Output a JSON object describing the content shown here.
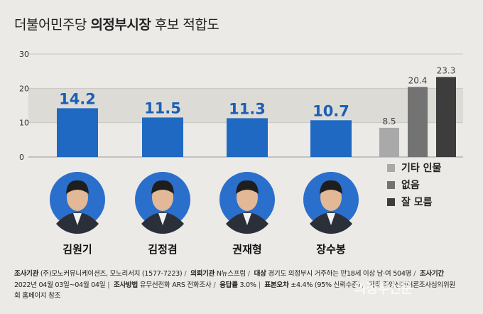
{
  "title": {
    "prefix": "더불어민주당",
    "bold": "의정부시장",
    "suffix": "후보 적합도"
  },
  "chart_data": {
    "type": "bar",
    "categories": [
      "김원기",
      "김정겸",
      "권재형",
      "장수봉",
      "기타 인물",
      "없음",
      "잘 모름"
    ],
    "values": [
      14.2,
      11.5,
      11.3,
      10.7,
      8.5,
      20.4,
      23.3
    ],
    "value_labels": [
      "14.2",
      "11.5",
      "11.3",
      "10.7",
      "8.5",
      "20.4",
      "23.3"
    ],
    "ylim": [
      0,
      30
    ],
    "yticks": [
      "0",
      "10",
      "20",
      "30"
    ],
    "legend": [
      "기타 인물",
      "없음",
      "잘 모름"
    ],
    "legend_position": "right",
    "colors": {
      "candidate": "#1f69c3",
      "other": "#a9a9a9",
      "none": "#737373",
      "dontknow": "#3d3d3d",
      "band": "#dddbd6"
    }
  },
  "candidates": [
    "김원기",
    "김정겸",
    "권재형",
    "장수봉"
  ],
  "footer": {
    "l1_k1": "조사기관",
    "l1_v1": "(주)모노커뮤니케이션즈, 모노리서치 (1577-7223)",
    "l1_k2": "의뢰기관",
    "l1_v2": "N뉴스프럼",
    "l1_k3": "대상",
    "l1_v3": "경기도 의정부시 거주하는 만18세 이상 남·여 504명",
    "l1_k4": "조사기간",
    "l2_v0": "2022년 04월 03일~04월 04일",
    "l2_k1": "조사방법",
    "l2_v1": "유무선전화 ARS 전화조사",
    "l2_k2": "응답률",
    "l2_v2": "3.0%",
    "l2_k3": "표본오차",
    "l2_v3": "±4.4% (95% 신뢰수준)",
    "l2_k4": "기타",
    "l2_v4": "중앙선거여론조사심의위원",
    "l3_v0": "회 홈페이지 참조"
  },
  "watermark": "의정부신문"
}
